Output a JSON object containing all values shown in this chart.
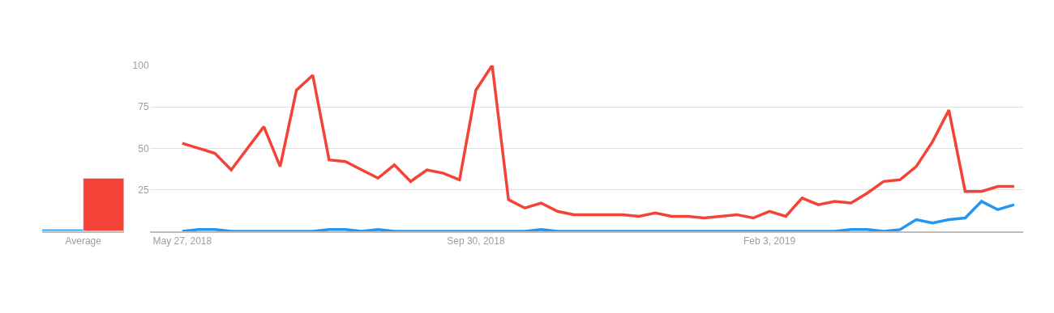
{
  "chart_data": [
    {
      "type": "bar",
      "categories": [
        "Average"
      ],
      "series": [
        {
          "color": "#2196f3",
          "values": [
            1
          ]
        },
        {
          "color": "#f44336",
          "values": [
            32
          ]
        }
      ],
      "ylim": [
        0,
        100
      ],
      "tick_labels": "x",
      "grid": false
    },
    {
      "type": "line",
      "x": [
        "2018-05-27",
        "2018-06-03",
        "2018-06-10",
        "2018-06-17",
        "2018-06-24",
        "2018-07-01",
        "2018-07-08",
        "2018-07-15",
        "2018-07-22",
        "2018-07-29",
        "2018-08-05",
        "2018-08-12",
        "2018-08-19",
        "2018-08-26",
        "2018-09-02",
        "2018-09-09",
        "2018-09-16",
        "2018-09-23",
        "2018-09-30",
        "2018-10-07",
        "2018-10-14",
        "2018-10-21",
        "2018-10-28",
        "2018-11-04",
        "2018-11-11",
        "2018-11-18",
        "2018-11-25",
        "2018-12-02",
        "2018-12-09",
        "2018-12-16",
        "2018-12-23",
        "2018-12-30",
        "2019-01-06",
        "2019-01-13",
        "2019-01-20",
        "2019-01-27",
        "2019-02-03",
        "2019-02-10",
        "2019-02-17",
        "2019-02-24",
        "2019-03-03",
        "2019-03-10",
        "2019-03-17",
        "2019-03-24",
        "2019-03-31",
        "2019-04-07",
        "2019-04-14",
        "2019-04-21",
        "2019-04-28",
        "2019-05-05",
        "2019-05-12",
        "2019-05-19"
      ],
      "series": [
        {
          "color": "#2196f3",
          "values": [
            0,
            1,
            1,
            0,
            0,
            0,
            0,
            0,
            0,
            1,
            1,
            0,
            1,
            0,
            0,
            0,
            0,
            0,
            0,
            0,
            0,
            0,
            1,
            0,
            0,
            0,
            0,
            0,
            0,
            0,
            0,
            0,
            0,
            0,
            0,
            0,
            0,
            0,
            0,
            0,
            0,
            1,
            1,
            0,
            1,
            7,
            5,
            7,
            8,
            18,
            13,
            16
          ]
        },
        {
          "color": "#f44336",
          "values": [
            53,
            50,
            47,
            37,
            50,
            63,
            39,
            85,
            94,
            43,
            42,
            37,
            32,
            40,
            30,
            37,
            35,
            31,
            85,
            100,
            19,
            14,
            17,
            12,
            10,
            10,
            10,
            10,
            9,
            11,
            9,
            9,
            8,
            9,
            10,
            8,
            12,
            9,
            20,
            16,
            18,
            17,
            23,
            30,
            31,
            39,
            54,
            73,
            24,
            24,
            27,
            27
          ]
        }
      ],
      "xlim": [
        "2018-05-13",
        "2019-05-23"
      ],
      "xticks": [
        {
          "value": "2018-05-27",
          "label": "May 27, 2018"
        },
        {
          "value": "2018-09-30",
          "label": "Sep 30, 2018"
        },
        {
          "value": "2019-02-03",
          "label": "Feb 3, 2019"
        }
      ],
      "ylim": [
        0,
        100
      ],
      "yticks": [
        25,
        50,
        75,
        100
      ],
      "grid": "y",
      "marker": "none",
      "line_style": "solid"
    }
  ]
}
